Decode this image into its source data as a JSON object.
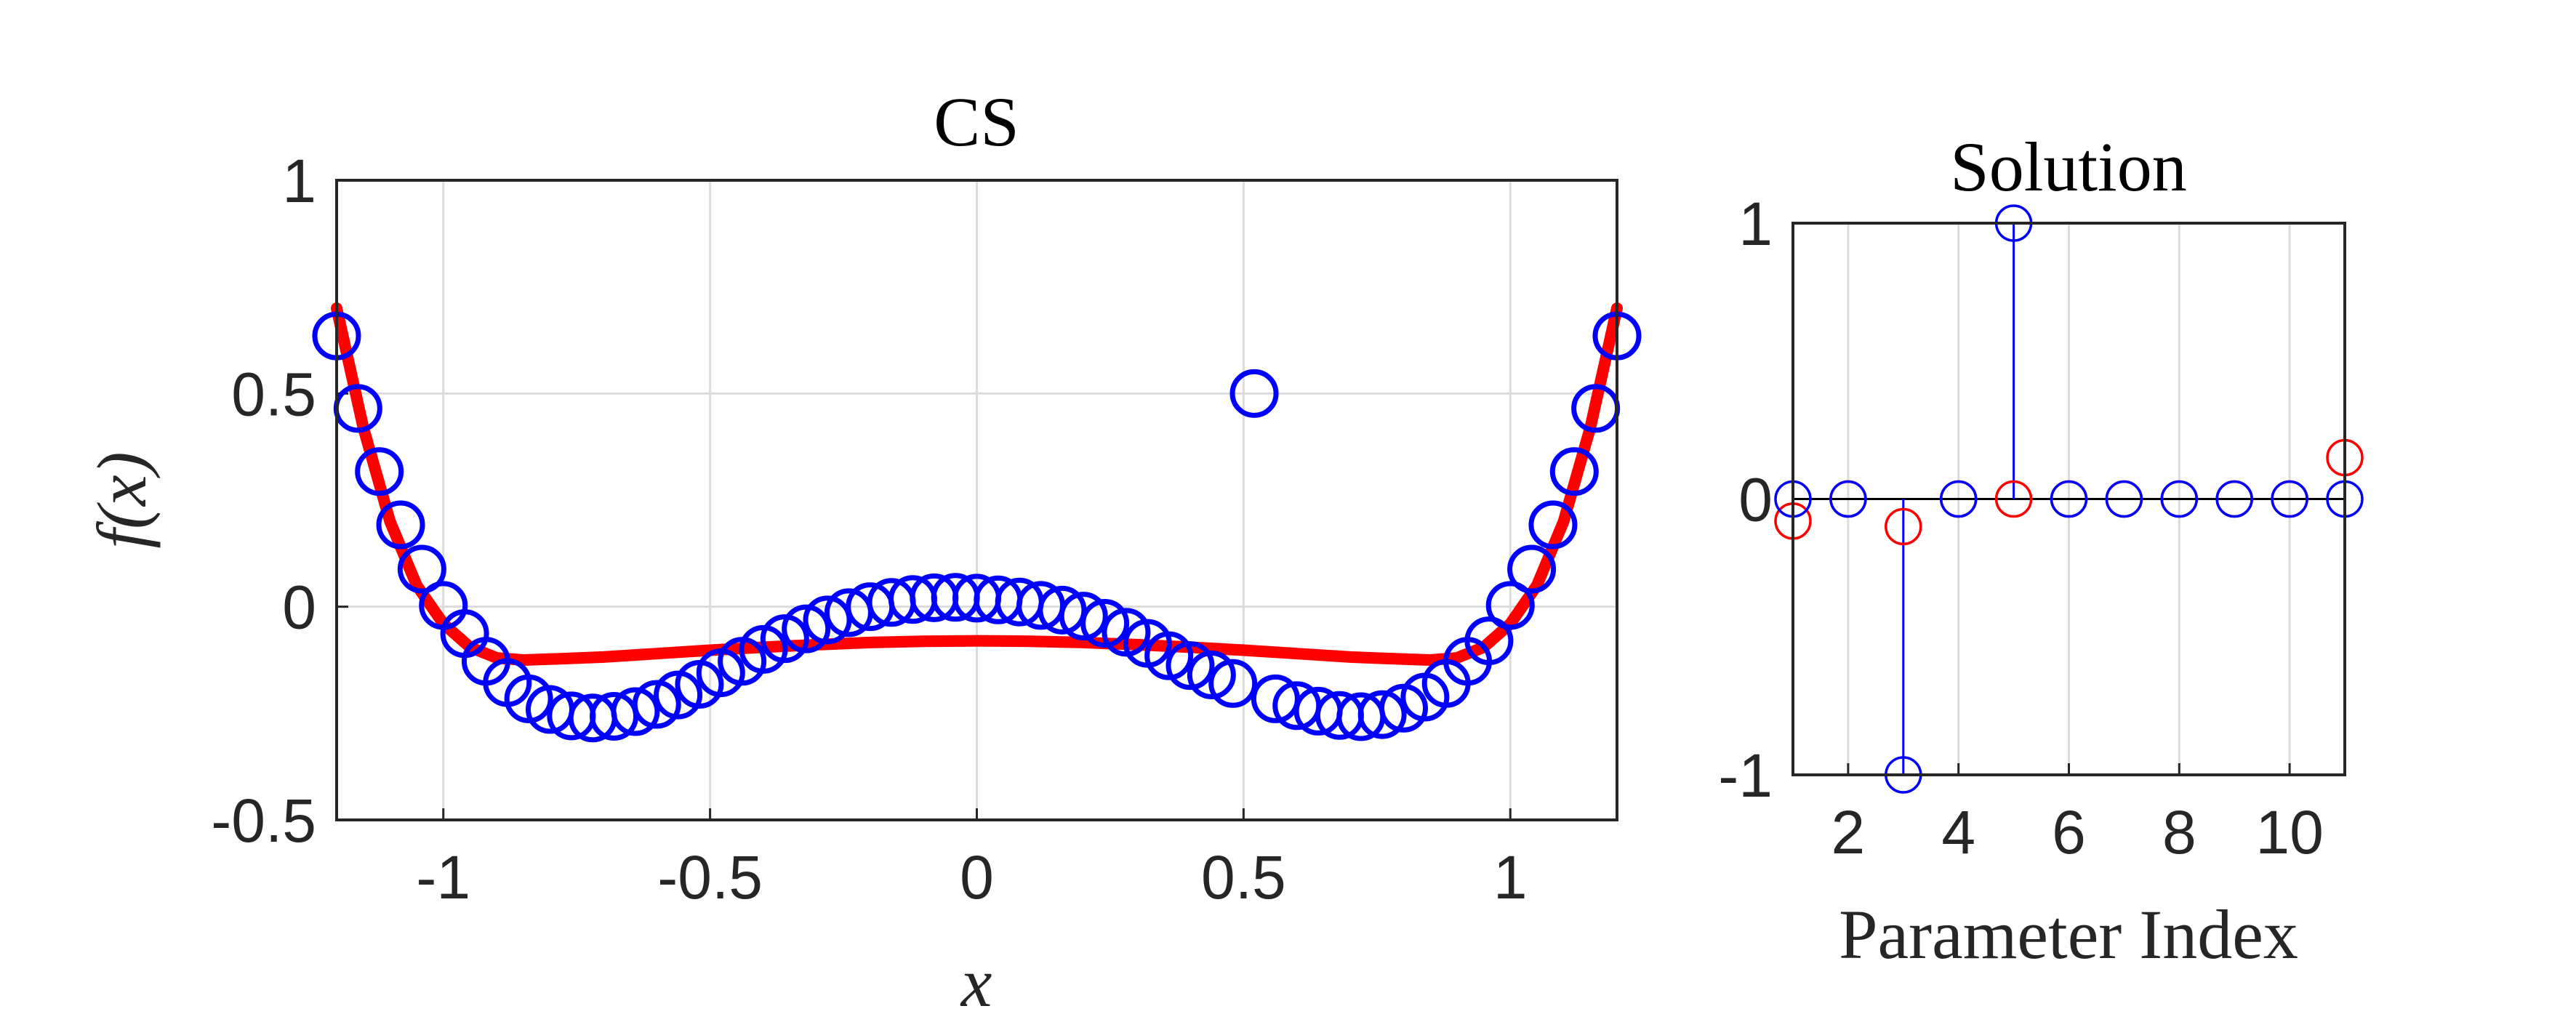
{
  "chart_data": [
    {
      "type": "scatter",
      "title": "CS",
      "xlabel": "x",
      "ylabel": "f(x)",
      "xlim": [
        -1.2,
        1.2
      ],
      "ylim": [
        -0.5,
        1
      ],
      "xticks": [
        -1,
        -0.5,
        0,
        0.5,
        1
      ],
      "xtick_labels": [
        "-1",
        "-0.5",
        "0",
        "0.5",
        "1"
      ],
      "yticks": [
        -0.5,
        0,
        0.5,
        1
      ],
      "ytick_labels": [
        "-0.5",
        "0",
        "0.5",
        "1"
      ],
      "grid": true,
      "colors": {
        "samples": "#0000ff",
        "fit": "#ff0000"
      },
      "series": [
        {
          "kind": "markers",
          "x": [
            -1.2,
            -1.16,
            -1.12,
            -1.08,
            -1.04,
            -1.0,
            -0.96,
            -0.92,
            -0.88,
            -0.84,
            -0.8,
            -0.76,
            -0.72,
            -0.68,
            -0.64,
            -0.6,
            -0.56,
            -0.52,
            -0.48,
            -0.44,
            -0.4,
            -0.36,
            -0.32,
            -0.28,
            -0.24,
            -0.2,
            -0.16,
            -0.12,
            -0.08,
            -0.04,
            0.0,
            0.04,
            0.08,
            0.12,
            0.16,
            0.2,
            0.24,
            0.28,
            0.32,
            0.36,
            0.4,
            0.44,
            0.48,
            0.52,
            0.56,
            0.6,
            0.64,
            0.68,
            0.72,
            0.76,
            0.8,
            0.84,
            0.88,
            0.92,
            0.96,
            1.0,
            1.04,
            1.08,
            1.12,
            1.16,
            1.2
          ],
          "y": [
            0.635,
            0.465,
            0.317,
            0.192,
            0.088,
            0.003,
            -0.063,
            -0.128,
            -0.178,
            -0.216,
            -0.241,
            -0.256,
            -0.261,
            -0.257,
            -0.246,
            -0.229,
            -0.207,
            -0.182,
            -0.155,
            -0.128,
            -0.1,
            -0.075,
            -0.052,
            -0.031,
            -0.014,
            0.0,
            0.01,
            0.017,
            0.021,
            0.022,
            0.02,
            0.016,
            0.011,
            0.003,
            -0.008,
            -0.022,
            -0.039,
            -0.06,
            -0.086,
            -0.115,
            -0.138,
            -0.16,
            -0.18,
            0.5,
            -0.216,
            -0.232,
            -0.245,
            -0.255,
            -0.258,
            -0.253,
            -0.238,
            -0.212,
            -0.18,
            -0.128,
            -0.08,
            0.003,
            0.088,
            0.192,
            0.317,
            0.465,
            0.635
          ]
        },
        {
          "kind": "line",
          "x": [
            -1.2,
            -1.15,
            -1.1,
            -1.05,
            -1.0,
            -0.95,
            -0.9,
            -0.85,
            -0.8,
            -0.7,
            -0.6,
            -0.5,
            -0.4,
            -0.3,
            -0.2,
            -0.1,
            0.0,
            0.1,
            0.2,
            0.3,
            0.4,
            0.5,
            0.6,
            0.7,
            0.8,
            0.85,
            0.9,
            0.95,
            1.0,
            1.05,
            1.1,
            1.15,
            1.2
          ],
          "y": [
            0.7,
            0.42,
            0.2,
            0.05,
            -0.04,
            -0.095,
            -0.12,
            -0.125,
            -0.123,
            -0.118,
            -0.11,
            -0.102,
            -0.095,
            -0.089,
            -0.084,
            -0.081,
            -0.08,
            -0.081,
            -0.084,
            -0.089,
            -0.095,
            -0.102,
            -0.11,
            -0.118,
            -0.123,
            -0.125,
            -0.12,
            -0.095,
            -0.04,
            0.05,
            0.2,
            0.42,
            0.7
          ]
        }
      ]
    },
    {
      "type": "stem",
      "title": "Solution",
      "xlabel": "Parameter Index",
      "ylabel": "",
      "xlim": [
        1,
        11
      ],
      "ylim": [
        -1,
        1
      ],
      "xticks": [
        2,
        4,
        6,
        8,
        10
      ],
      "xtick_labels": [
        "2",
        "4",
        "6",
        "8",
        "10"
      ],
      "yticks": [
        -1,
        0,
        1
      ],
      "ytick_labels": [
        "-1",
        "0",
        "1"
      ],
      "grid": true,
      "colors": {
        "cs": "#0000ff",
        "ls": "#ff0000"
      },
      "series": [
        {
          "kind": "stem",
          "x": [
            1,
            2,
            3,
            4,
            5,
            6,
            7,
            8,
            9,
            10,
            11
          ],
          "y": [
            0,
            0,
            -1,
            0,
            1,
            0,
            0,
            0,
            0,
            0,
            0
          ]
        },
        {
          "kind": "markers",
          "x": [
            1,
            2,
            3,
            4,
            5,
            6,
            7,
            8,
            9,
            10,
            11
          ],
          "y": [
            -0.08,
            0,
            -0.1,
            0,
            0,
            0,
            0,
            0,
            0,
            0,
            0.15
          ]
        }
      ]
    }
  ]
}
